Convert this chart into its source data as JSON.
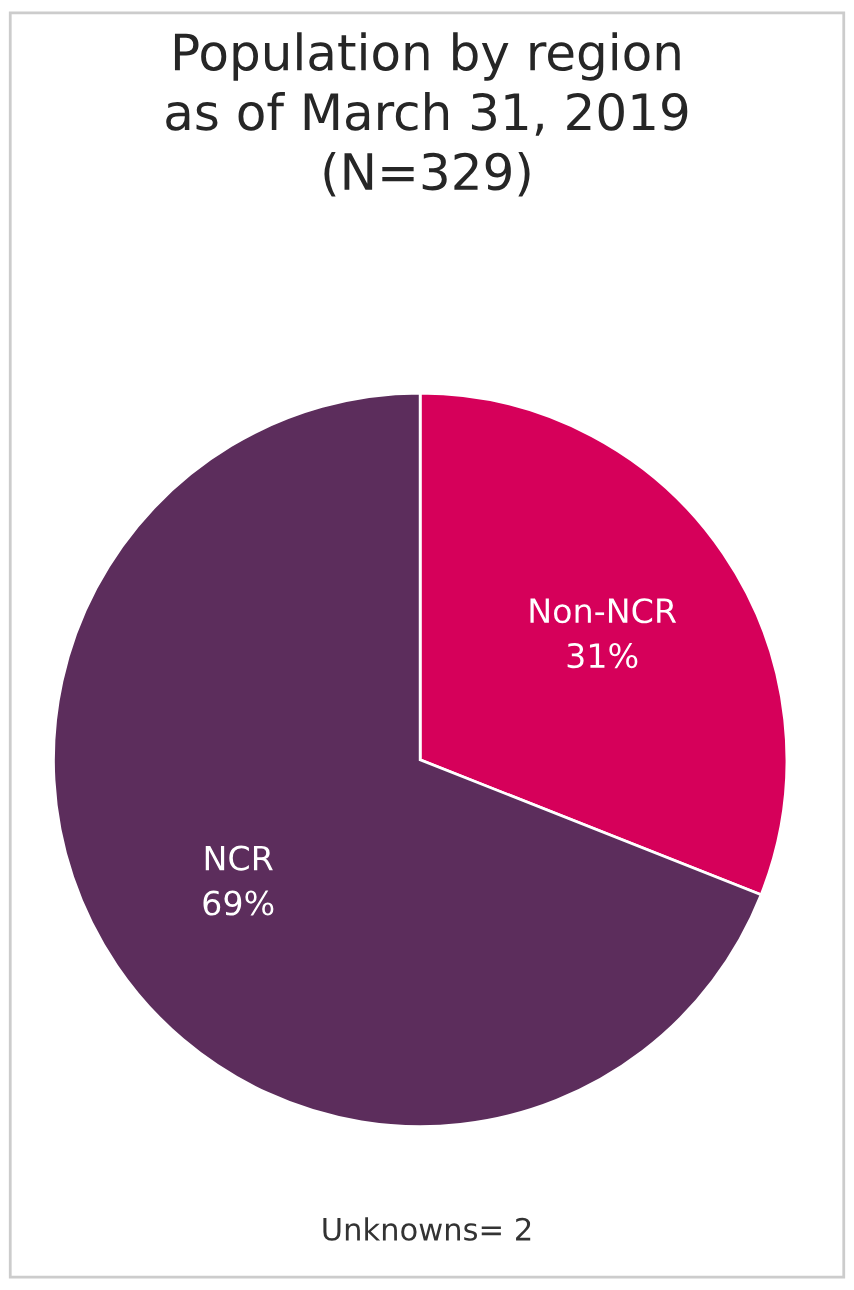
{
  "chart_data": {
    "type": "pie",
    "title": "Population by region\nas of March 31, 2019\n(N=329)",
    "categories": [
      "Non-NCR",
      "NCR"
    ],
    "values": [
      31,
      69
    ],
    "value_labels": [
      "31%",
      "69%"
    ],
    "colors": [
      "#d6005a",
      "#5c2d5c"
    ],
    "annotations": [
      "Unknowns= 2"
    ]
  }
}
